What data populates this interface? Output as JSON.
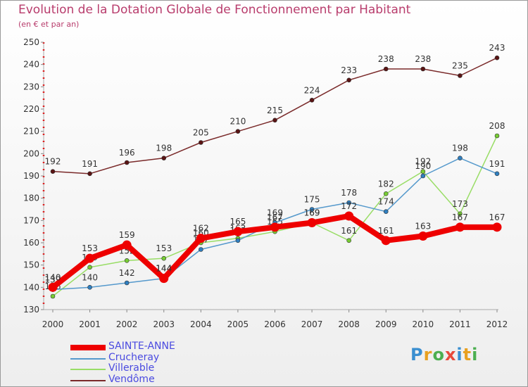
{
  "title": "Evolution de la Dotation Globale de Fonctionnement par Habitant",
  "subtitle": "(en € et par an)",
  "logo": "Proxiti",
  "chart_data": {
    "type": "line",
    "title": "Evolution de la Dotation Globale de Fonctionnement par Habitant",
    "subtitle": "(en € et par an)",
    "xlabel": "",
    "ylabel": "",
    "ylim": [
      130,
      250
    ],
    "yticks": [
      130,
      140,
      150,
      160,
      170,
      180,
      190,
      200,
      210,
      220,
      230,
      240,
      250
    ],
    "categories": [
      "2000",
      "2001",
      "2002",
      "2003",
      "2004",
      "2005",
      "2006",
      "2007",
      "2008",
      "2009",
      "2010",
      "2011",
      "2012"
    ],
    "grid": false,
    "legend": "bottom-left",
    "series": [
      {
        "name": "Vendôme",
        "color": "#7a2a2a",
        "marker": "#5a1414",
        "values": [
          192,
          191,
          196,
          198,
          205,
          210,
          215,
          224,
          233,
          238,
          238,
          235,
          243
        ]
      },
      {
        "name": "Villerable",
        "color": "#99dd66",
        "marker": "#77cc33",
        "values": [
          136,
          149,
          152,
          153,
          160,
          162,
          165,
          169,
          161,
          182,
          192,
          173,
          208
        ]
      },
      {
        "name": "Crucheray",
        "color": "#5599cc",
        "marker": "#2f7fc0",
        "values": [
          139,
          140,
          142,
          144,
          157,
          161,
          169,
          175,
          178,
          174,
          190,
          198,
          191
        ]
      },
      {
        "name": "SAINTE-ANNE",
        "color": "#ee0000",
        "marker": "#ee0000",
        "values": [
          140,
          153,
          159,
          144,
          162,
          165,
          167,
          169,
          172,
          161,
          163,
          167,
          167
        ]
      }
    ]
  }
}
